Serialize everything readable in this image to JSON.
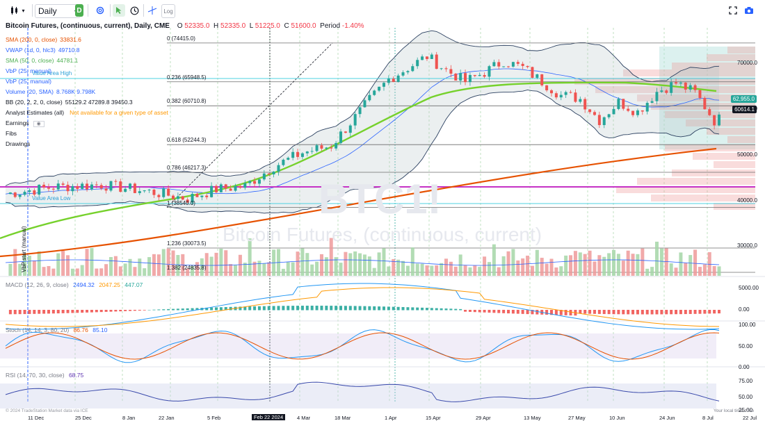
{
  "toolbar": {
    "interval": "Daily",
    "d_badge": "D",
    "log_label": "Log"
  },
  "header": {
    "symbol": "Bitcoin Futures, (continuous, current), Daily, CME",
    "open_label": "O",
    "open": "52335.0",
    "high_label": "H",
    "high": "52335.0",
    "low_label": "L",
    "low": "51225.0",
    "close_label": "C",
    "close": "51600.0",
    "period_label": "Period",
    "period": "-1.40%"
  },
  "indicators": [
    {
      "name": "SMA (200, 0, close)",
      "value": "33831.6",
      "color": "#e65100"
    },
    {
      "name": "VWAP (1d, 0, hlc3)",
      "value": "49710.8",
      "color": "#2962ff"
    },
    {
      "name": "SMA (50, 0, close)",
      "value": "44781.1",
      "color": "#4caf50"
    },
    {
      "name": "VbP (25, manual)",
      "value": "",
      "color": "#2962ff"
    },
    {
      "name": "VbP (25, manual)",
      "value": "",
      "color": "#2962ff"
    },
    {
      "name": "Volume (20, SMA)",
      "value": "8.768K 9.798K",
      "color": "#2962ff"
    },
    {
      "name": "BB (20, 2, 2, 0, close)",
      "value": "55129.2 47289.8 39450.3",
      "color": "#131722"
    },
    {
      "name": "Analyst Estimates (all)",
      "value": "Not available for a given type of asset",
      "color": "#131722"
    },
    {
      "name": "Earnings",
      "value": "",
      "color": "#131722"
    },
    {
      "name": "Fibs",
      "value": "",
      "color": "#131722"
    },
    {
      "name": "Drawings",
      "value": "",
      "color": "#131722"
    }
  ],
  "value_area_high": "Value Area High",
  "value_area_low": "Value Area Low",
  "vbp_start": "VbP start (manual)",
  "watermark_symbol": "BTC1!",
  "watermark_name": "Bitcoin Futures, (continuous, current)",
  "fib_levels": [
    {
      "label": "0 (74415.0)",
      "price": 74415
    },
    {
      "label": "0.236 (65948.5)",
      "price": 65948.5
    },
    {
      "label": "0.382 (60710.8)",
      "price": 60710.8
    },
    {
      "label": "0.618 (52244.3)",
      "price": 52244.3
    },
    {
      "label": "0.786 (46217.3)",
      "price": 46217.3
    },
    {
      "label": "1 (38540.0)",
      "price": 38540
    },
    {
      "label": "1.236 (30073.5)",
      "price": 30073.5
    },
    {
      "label": "1.382 (24835.8)",
      "price": 24835.8
    }
  ],
  "price_axis": [
    "70000.0",
    "60000.0",
    "50000.0",
    "40000.0",
    "30000.0"
  ],
  "last_price": "62,955.0",
  "vwap_tag": "60614.1",
  "macd": {
    "label": "MACD (12, 26, 9, close)",
    "v1": "2494.32",
    "v2": "2047.25",
    "v3": "447.07",
    "axis": [
      "5000.00",
      "0.00"
    ]
  },
  "stoch": {
    "label": "Stoch (14, 14, 3, 80, 20)",
    "v1": "86.76",
    "v2": "85.10",
    "axis": [
      "100.00",
      "50.00",
      "0.00"
    ]
  },
  "rsi": {
    "label": "RSI (14, 70, 30, close)",
    "v1": "68.75",
    "axis": [
      "75.00",
      "50.00",
      "25.00"
    ]
  },
  "time_axis": [
    "11 Dec",
    "25 Dec",
    "8 Jan",
    "22 Jan",
    "5 Feb",
    "Feb 22 2024",
    "4 Mar",
    "18 Mar",
    "1 Apr",
    "15 Apr",
    "29 Apr",
    "13 May",
    "27 May",
    "10 Jun",
    "24 Jun",
    "8 Jul",
    "22 Jul"
  ],
  "copyright": "© 2024 TradeStation Market data via ICE",
  "local_time": "Your local time zone",
  "colors": {
    "up": "#26a69a",
    "down": "#ef5350",
    "sma200": "#e65100",
    "sma50": "#76d12c",
    "vwap": "#2962ff",
    "bb": "#2a3f5f",
    "magenta": "#c531c5",
    "cyan": "#4dd0e1"
  }
}
